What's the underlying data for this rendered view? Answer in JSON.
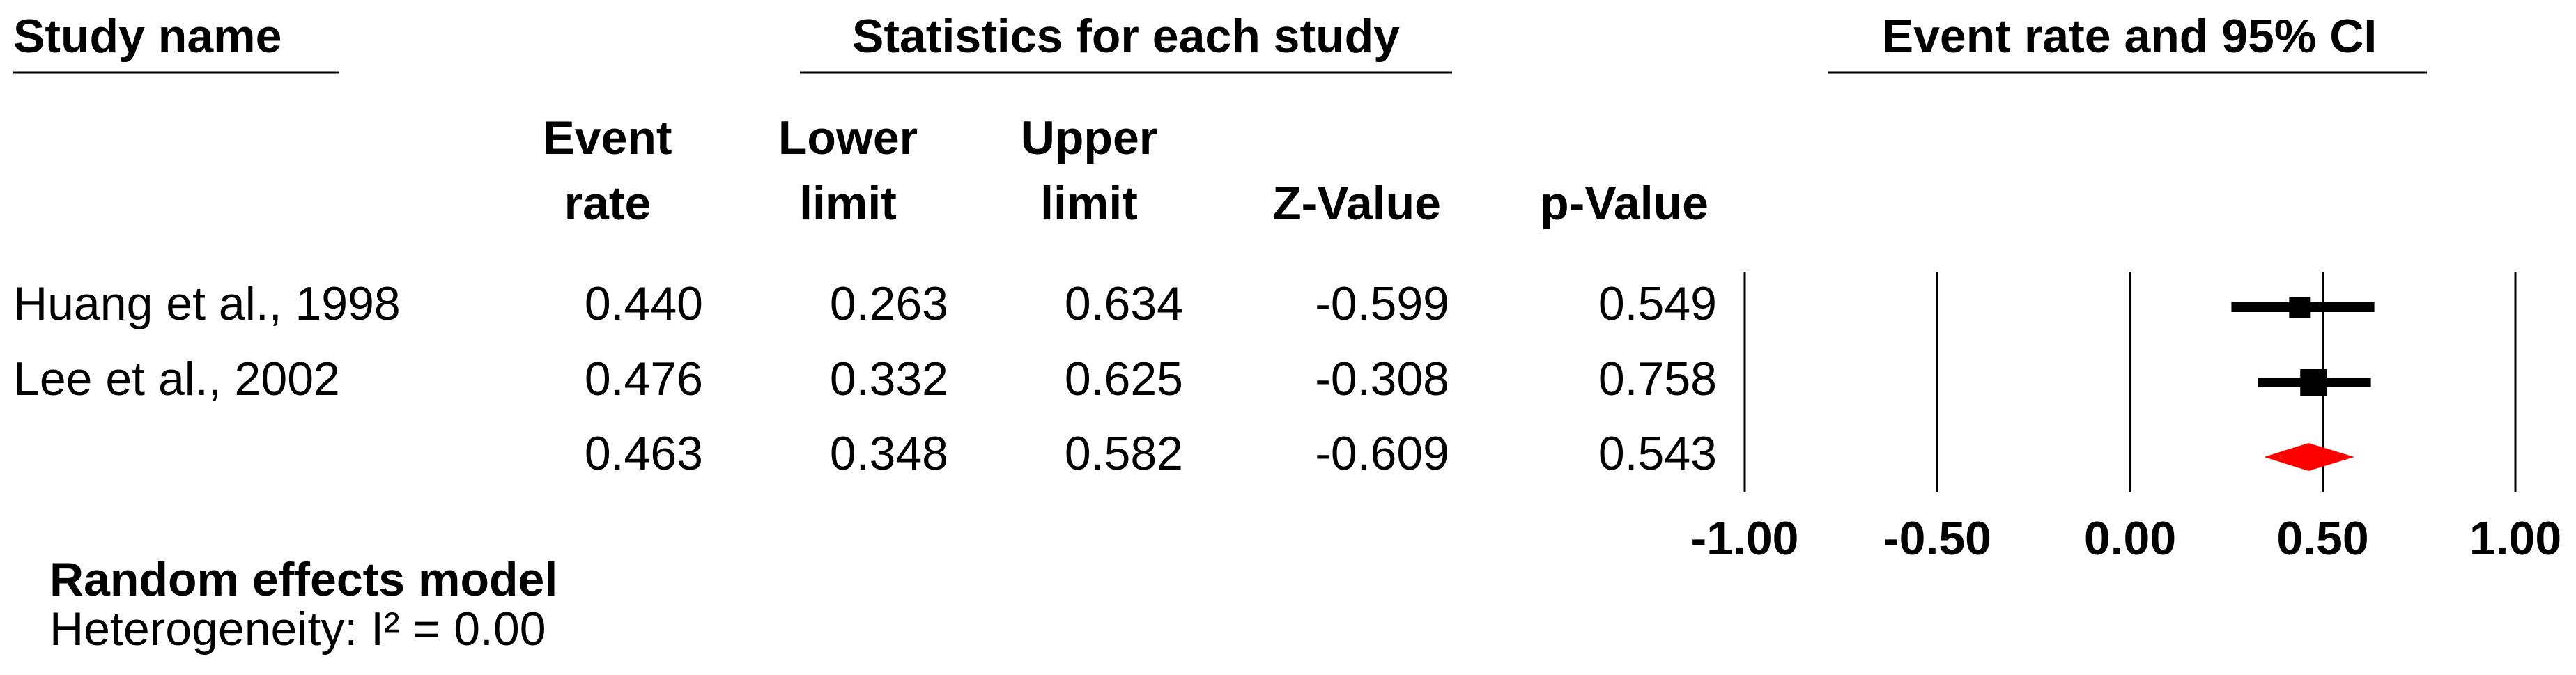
{
  "chart_data": {
    "type": "forest",
    "section_headers": [
      "Study name",
      "Statistics for each study",
      "Event rate and 95% CI"
    ],
    "categories": [
      "Huang et al., 1998",
      "Lee et al.,  2002",
      null
    ],
    "columns": [
      {
        "header": [
          "Event",
          "rate"
        ],
        "values": [
          0.44,
          0.476,
          0.463
        ],
        "value_labels": [
          "0.440",
          "0.476",
          "0.463"
        ]
      },
      {
        "header": [
          "Lower",
          "limit"
        ],
        "values": [
          0.263,
          0.332,
          0.348
        ],
        "value_labels": [
          "0.263",
          "0.332",
          "0.348"
        ]
      },
      {
        "header": [
          "Upper",
          "limit"
        ],
        "values": [
          0.634,
          0.625,
          0.582
        ],
        "value_labels": [
          "0.634",
          "0.625",
          "0.582"
        ]
      },
      {
        "header": [
          "Z-Value"
        ],
        "values": [
          -0.599,
          -0.308,
          -0.609
        ],
        "value_labels": [
          "-0.599",
          "-0.308",
          "-0.609"
        ]
      },
      {
        "header": [
          "p-Value"
        ],
        "values": [
          0.549,
          0.758,
          0.543
        ],
        "value_labels": [
          "0.549",
          "0.758",
          "0.543"
        ]
      }
    ],
    "summary_row": 2,
    "model_label": "Random effects model",
    "heterogeneity": "Heterogeneity: I² = 0.00",
    "xlim": [
      -1,
      1
    ],
    "xticks": [
      {
        "value": -1,
        "label": "-1.00"
      },
      {
        "value": -0.5,
        "label": "-0.50"
      },
      {
        "value": 0,
        "label": "0.00"
      },
      {
        "value": 0.5,
        "label": "0.50"
      },
      {
        "value": 1,
        "label": "1.00"
      }
    ],
    "study_color": "#000000",
    "summary_color": "#ff0000"
  }
}
